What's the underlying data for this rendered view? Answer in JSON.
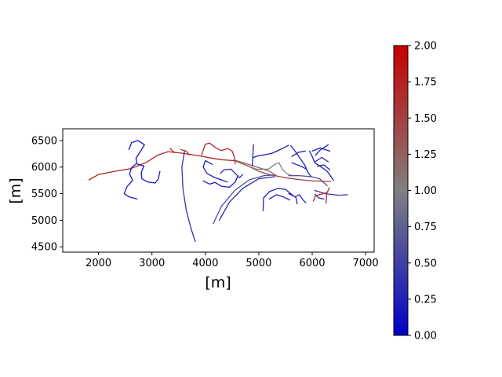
{
  "chart_data": {
    "type": "line",
    "xlabel": "[m]",
    "ylabel": "[m]",
    "xlim": [
      1330,
      7160
    ],
    "ylim": [
      4400,
      6720
    ],
    "x_ticks": [
      "2000",
      "3000",
      "4000",
      "5000",
      "6000",
      "7000"
    ],
    "x_tick_values": [
      2000,
      3000,
      4000,
      5000,
      6000,
      7000
    ],
    "y_ticks": [
      "4500",
      "5000",
      "5500",
      "6000",
      "6500"
    ],
    "y_tick_values": [
      4500,
      5000,
      5500,
      6000,
      6500
    ],
    "grid": false,
    "colorbar": {
      "min": 0.0,
      "max": 2.0,
      "ticks": [
        "0.00",
        "0.25",
        "0.50",
        "0.75",
        "1.00",
        "1.25",
        "1.50",
        "1.75",
        "2.00"
      ],
      "tick_values": [
        0,
        0.25,
        0.5,
        0.75,
        1.0,
        1.25,
        1.5,
        1.75,
        2.0
      ],
      "colormap": [
        "#0000c8",
        "#808080",
        "#c80000"
      ]
    },
    "series": [
      {
        "value": 1.7,
        "points": [
          [
            1820,
            5760
          ],
          [
            2000,
            5860
          ],
          [
            2300,
            5920
          ],
          [
            2600,
            5970
          ],
          [
            2900,
            6090
          ],
          [
            3100,
            6220
          ],
          [
            3300,
            6290
          ],
          [
            3500,
            6270
          ],
          [
            3700,
            6240
          ],
          [
            3900,
            6210
          ],
          [
            4100,
            6170
          ],
          [
            4300,
            6140
          ],
          [
            4550,
            6120
          ]
        ]
      },
      {
        "value": 1.45,
        "points": [
          [
            4550,
            6120
          ],
          [
            4800,
            6020
          ],
          [
            5000,
            5920
          ],
          [
            5200,
            5860
          ],
          [
            5500,
            5800
          ],
          [
            5800,
            5760
          ],
          [
            6000,
            5740
          ],
          [
            6350,
            5730
          ]
        ]
      },
      {
        "value": 1.2,
        "points": [
          [
            4550,
            6130
          ],
          [
            4780,
            6060
          ],
          [
            5000,
            5990
          ],
          [
            5200,
            5920
          ],
          [
            5360,
            5820
          ]
        ]
      },
      {
        "value": 0.2,
        "points": [
          [
            2570,
            6330
          ],
          [
            2620,
            6460
          ],
          [
            2740,
            6500
          ],
          [
            2860,
            6420
          ],
          [
            2790,
            6300
          ],
          [
            2700,
            6170
          ],
          [
            2720,
            6060
          ],
          [
            2850,
            6020
          ]
        ]
      },
      {
        "value": 0.2,
        "points": [
          [
            2700,
            6060
          ],
          [
            2620,
            5990
          ],
          [
            2580,
            5870
          ],
          [
            2640,
            5750
          ],
          [
            2530,
            5630
          ],
          [
            2480,
            5500
          ],
          [
            2570,
            5440
          ],
          [
            2720,
            5400
          ]
        ]
      },
      {
        "value": 0.2,
        "points": [
          [
            2850,
            6020
          ],
          [
            2800,
            5900
          ],
          [
            2810,
            5780
          ],
          [
            2920,
            5720
          ],
          [
            3060,
            5700
          ],
          [
            3120,
            5780
          ],
          [
            3150,
            5920
          ]
        ]
      },
      {
        "value": 0.4,
        "points": [
          [
            3610,
            6300
          ],
          [
            3560,
            6000
          ],
          [
            3580,
            5600
          ],
          [
            3640,
            5200
          ],
          [
            3730,
            4850
          ],
          [
            3810,
            4600
          ]
        ]
      },
      {
        "value": 1.7,
        "points": [
          [
            3540,
            6330
          ],
          [
            3640,
            6300
          ],
          [
            3700,
            6230
          ]
        ]
      },
      {
        "value": 1.7,
        "points": [
          [
            3340,
            6350
          ],
          [
            3420,
            6270
          ]
        ]
      },
      {
        "value": 1.7,
        "points": [
          [
            3930,
            6230
          ],
          [
            4000,
            6430
          ],
          [
            4080,
            6450
          ],
          [
            4200,
            6360
          ],
          [
            4300,
            6310
          ],
          [
            4420,
            6350
          ],
          [
            4500,
            6300
          ],
          [
            4540,
            6200
          ],
          [
            4560,
            6060
          ]
        ]
      },
      {
        "value": 0.2,
        "points": [
          [
            4130,
            6050
          ],
          [
            4000,
            6120
          ],
          [
            3960,
            6000
          ],
          [
            4030,
            5880
          ],
          [
            4180,
            5800
          ],
          [
            4300,
            5760
          ],
          [
            4410,
            5720
          ]
        ]
      },
      {
        "value": 0.2,
        "points": [
          [
            3960,
            5740
          ],
          [
            4080,
            5680
          ],
          [
            4180,
            5710
          ],
          [
            4300,
            5640
          ],
          [
            4450,
            5620
          ],
          [
            4560,
            5720
          ],
          [
            4600,
            5820
          ]
        ]
      },
      {
        "value": 0.3,
        "points": [
          [
            4280,
            5880
          ],
          [
            4350,
            5950
          ],
          [
            4480,
            5960
          ],
          [
            4560,
            5880
          ],
          [
            4640,
            5800
          ],
          [
            4700,
            5860
          ]
        ]
      },
      {
        "value": 0.6,
        "points": [
          [
            4150,
            4940
          ],
          [
            4300,
            5260
          ],
          [
            4550,
            5560
          ],
          [
            4820,
            5760
          ],
          [
            5100,
            5840
          ],
          [
            5300,
            5850
          ]
        ]
      },
      {
        "value": 0.3,
        "points": [
          [
            4260,
            5000
          ],
          [
            4450,
            5340
          ],
          [
            4700,
            5600
          ],
          [
            5000,
            5780
          ],
          [
            5300,
            5820
          ]
        ]
      },
      {
        "value": 0.25,
        "points": [
          [
            4900,
            6180
          ],
          [
            4980,
            6210
          ],
          [
            5100,
            6230
          ],
          [
            5250,
            6260
          ],
          [
            5400,
            6330
          ],
          [
            5560,
            6410
          ]
        ]
      },
      {
        "value": 0.25,
        "points": [
          [
            4880,
            6020
          ],
          [
            4900,
            6420
          ]
        ]
      },
      {
        "value": 1.0,
        "points": [
          [
            4880,
            5990
          ],
          [
            4950,
            5960
          ],
          [
            5180,
            5960
          ],
          [
            5300,
            6050
          ],
          [
            5380,
            6080
          ],
          [
            5440,
            5960
          ],
          [
            5520,
            5880
          ],
          [
            5620,
            5840
          ],
          [
            5750,
            5840
          ]
        ]
      },
      {
        "value": 0.6,
        "points": [
          [
            5560,
            5840
          ],
          [
            5750,
            5840
          ],
          [
            5980,
            5820
          ],
          [
            6140,
            5780
          ],
          [
            6280,
            5650
          ]
        ]
      },
      {
        "value": 0.25,
        "points": [
          [
            5600,
            6400
          ],
          [
            5680,
            6300
          ],
          [
            5760,
            6180
          ],
          [
            5860,
            6040
          ],
          [
            5920,
            5900
          ],
          [
            5980,
            5820
          ]
        ]
      },
      {
        "value": 0.25,
        "points": [
          [
            5620,
            6200
          ],
          [
            5750,
            6280
          ],
          [
            5870,
            6300
          ]
        ]
      },
      {
        "value": 0.25,
        "points": [
          [
            5620,
            6080
          ],
          [
            5700,
            6050
          ],
          [
            5800,
            6010
          ],
          [
            5880,
            5970
          ]
        ]
      },
      {
        "value": 0.25,
        "points": [
          [
            5950,
            6300
          ],
          [
            6000,
            6200
          ],
          [
            6050,
            6080
          ],
          [
            6200,
            5980
          ],
          [
            6280,
            5920
          ],
          [
            6340,
            5840
          ],
          [
            6400,
            5750
          ]
        ]
      },
      {
        "value": 0.25,
        "points": [
          [
            6000,
            6300
          ],
          [
            6150,
            6360
          ],
          [
            6330,
            6300
          ]
        ]
      },
      {
        "value": 0.25,
        "points": [
          [
            6050,
            6100
          ],
          [
            6180,
            6180
          ],
          [
            6300,
            6100
          ]
        ]
      },
      {
        "value": 0.25,
        "points": [
          [
            6100,
            6020
          ],
          [
            6220,
            6040
          ],
          [
            6330,
            5950
          ]
        ]
      },
      {
        "value": 0.25,
        "points": [
          [
            6060,
            6220
          ],
          [
            6150,
            6320
          ],
          [
            6300,
            6420
          ]
        ]
      },
      {
        "value": 0.25,
        "points": [
          [
            5080,
            5180
          ],
          [
            5090,
            5420
          ],
          [
            5200,
            5540
          ],
          [
            5360,
            5600
          ],
          [
            5500,
            5580
          ],
          [
            5600,
            5500
          ],
          [
            5700,
            5420
          ],
          [
            5720,
            5310
          ]
        ]
      },
      {
        "value": 0.25,
        "points": [
          [
            5200,
            5400
          ],
          [
            5330,
            5480
          ],
          [
            5460,
            5440
          ],
          [
            5580,
            5380
          ]
        ]
      },
      {
        "value": 0.25,
        "points": [
          [
            5560,
            5500
          ],
          [
            5680,
            5440
          ],
          [
            5760,
            5480
          ],
          [
            5830,
            5380
          ],
          [
            5880,
            5330
          ]
        ]
      },
      {
        "value": 0.4,
        "points": [
          [
            6050,
            5560
          ],
          [
            6250,
            5500
          ],
          [
            6500,
            5470
          ],
          [
            6660,
            5480
          ]
        ]
      },
      {
        "value": 1.7,
        "points": [
          [
            6020,
            5360
          ],
          [
            6060,
            5460
          ],
          [
            6200,
            5500
          ],
          [
            6280,
            5520
          ],
          [
            6320,
            5610
          ]
        ]
      },
      {
        "value": 1.7,
        "points": [
          [
            6270,
            5510
          ],
          [
            6260,
            5320
          ]
        ]
      },
      {
        "value": 0.4,
        "points": [
          [
            6050,
            5490
          ],
          [
            6120,
            5420
          ],
          [
            6220,
            5400
          ]
        ]
      }
    ]
  }
}
